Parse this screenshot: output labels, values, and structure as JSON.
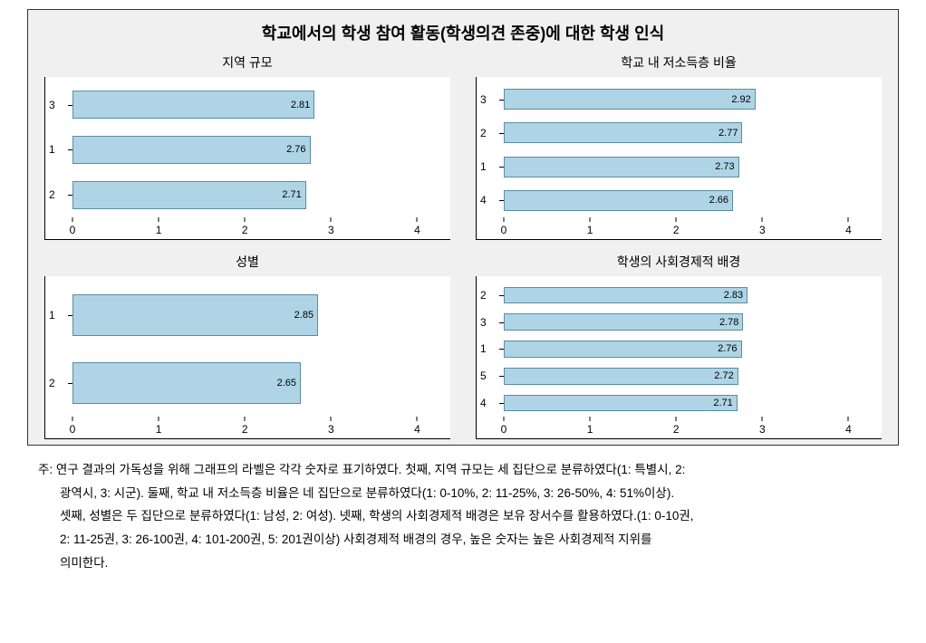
{
  "title": "학교에서의 학생 참여 활동(학생의견 존중)에 대한 학생 인식",
  "bar_color": "#aed4e6",
  "bar_border": "#5b8ca3",
  "xmax": 4.3,
  "xticks": [
    0,
    1,
    2,
    3,
    4
  ],
  "panels": [
    {
      "key": "p0",
      "title": "지역 규모",
      "bars": [
        {
          "cat": "3",
          "val": 2.81
        },
        {
          "cat": "1",
          "val": 2.76
        },
        {
          "cat": "2",
          "val": 2.71
        }
      ]
    },
    {
      "key": "p1",
      "title": "학교 내 저소득층 비율",
      "bars": [
        {
          "cat": "3",
          "val": 2.92
        },
        {
          "cat": "2",
          "val": 2.77
        },
        {
          "cat": "1",
          "val": 2.73
        },
        {
          "cat": "4",
          "val": 2.66
        }
      ]
    },
    {
      "key": "p2",
      "title": "성별",
      "bars": [
        {
          "cat": "1",
          "val": 2.85
        },
        {
          "cat": "2",
          "val": 2.65
        }
      ]
    },
    {
      "key": "p3",
      "title": "학생의 사회경제적 배경",
      "bars": [
        {
          "cat": "2",
          "val": 2.83
        },
        {
          "cat": "3",
          "val": 2.78
        },
        {
          "cat": "1",
          "val": 2.76
        },
        {
          "cat": "5",
          "val": 2.72
        },
        {
          "cat": "4",
          "val": 2.71
        }
      ]
    }
  ],
  "footnote_lines": [
    "주: 연구 결과의 가독성을 위해 그래프의 라벨은 각각 숫자로 표기하였다. 첫째, 지역 규모는 세 집단으로 분류하였다(1: 특별시, 2:",
    "광역시, 3: 시군). 둘째, 학교 내 저소득층 비율은 네 집단으로 분류하였다(1: 0-10%, 2: 11-25%, 3: 26-50%, 4: 51%이상).",
    "셋째, 성별은 두 집단으로 분류하였다(1: 남성, 2: 여성). 넷째, 학생의 사회경제적 배경은 보유 장서수를 활용하였다.(1: 0-10권,",
    "2: 11-25권, 3: 26-100권, 4: 101-200권, 5: 201권이상) 사회경제적 배경의 경우, 높은 숫자는 높은 사회경제적 지위를",
    "의미한다."
  ]
}
